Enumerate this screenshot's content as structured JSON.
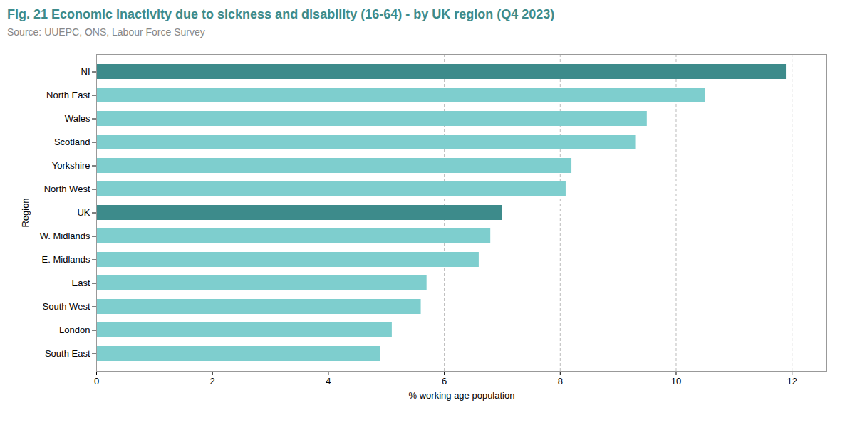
{
  "chart_data": {
    "type": "bar",
    "orientation": "horizontal",
    "title": "Fig. 21 Economic inactivity due to sickness and disability (16-64) - by UK region (Q4 2023)",
    "subtitle": "Source: UUEPC, ONS, Labour Force Survey",
    "xlabel": "% working age population",
    "ylabel": "Region",
    "categories": [
      "NI",
      "North East",
      "Wales",
      "Scotland",
      "Yorkshire",
      "North West",
      "UK",
      "W. Midlands",
      "E. Midlands",
      "East",
      "South West",
      "London",
      "South East"
    ],
    "values": [
      11.9,
      10.5,
      9.5,
      9.3,
      8.2,
      8.1,
      7.0,
      6.8,
      6.6,
      5.7,
      5.6,
      5.1,
      4.9
    ],
    "colors": [
      "#3d8b8b",
      "#7ecece",
      "#7ecece",
      "#7ecece",
      "#7ecece",
      "#7ecece",
      "#3d8b8b",
      "#7ecece",
      "#7ecece",
      "#7ecece",
      "#7ecece",
      "#7ecece",
      "#7ecece"
    ],
    "xlim": [
      0,
      12.6
    ],
    "xticks": [
      0,
      2,
      4,
      6,
      8,
      10,
      12
    ],
    "reference_lines": [
      6,
      8,
      10,
      12
    ],
    "grid": false
  }
}
